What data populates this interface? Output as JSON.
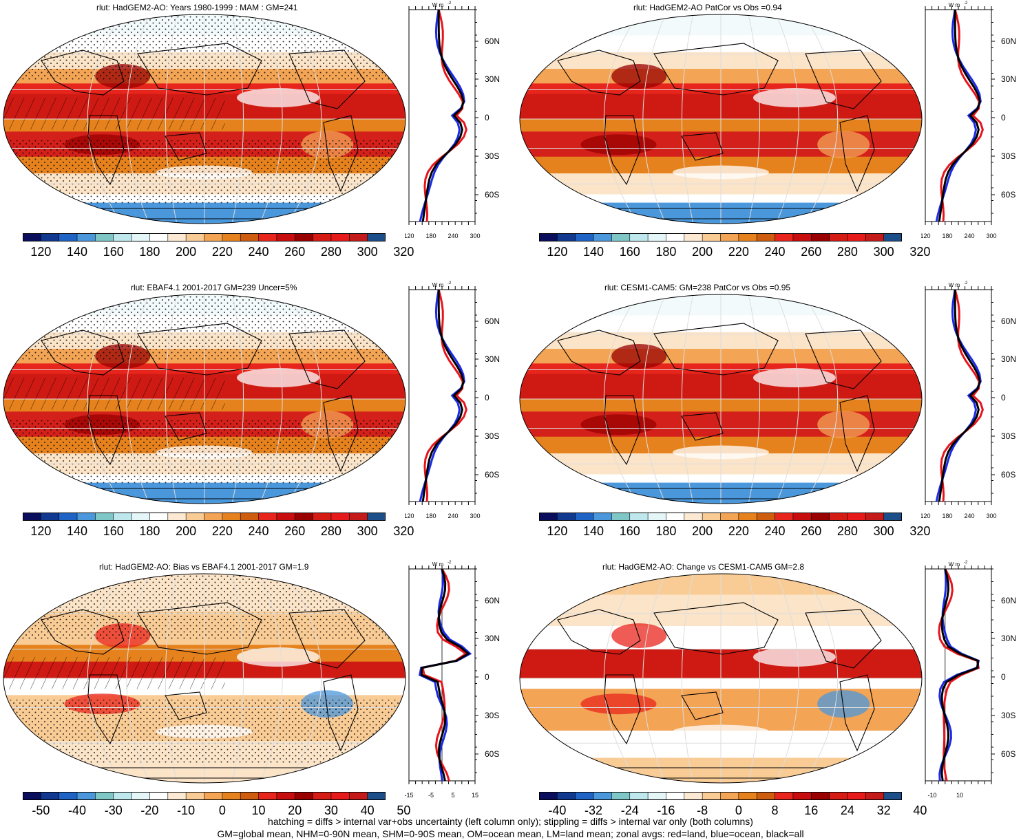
{
  "panels": [
    {
      "id": "p1",
      "title": "rlut: HadGEM2-AO: Years 1980-1999 : MAM : GM=241",
      "kind": "absolute",
      "hatch": true,
      "stipple": true,
      "profile_xticks": [
        "120",
        "180",
        "240",
        "300"
      ],
      "colorbar_labels": [
        "120",
        "140",
        "160",
        "180",
        "200",
        "220",
        "240",
        "260",
        "280",
        "300",
        "320"
      ]
    },
    {
      "id": "p2",
      "title": "rlut: HadGEM2-AO PatCor vs Obs =0.94",
      "kind": "absolute",
      "hatch": false,
      "stipple": false,
      "profile_xticks": [
        "120",
        "180",
        "240",
        "300"
      ],
      "colorbar_labels": [
        "120",
        "140",
        "160",
        "180",
        "200",
        "220",
        "240",
        "260",
        "280",
        "300",
        "320"
      ]
    },
    {
      "id": "p3",
      "title": "rlut: EBAF4.1 2001-2017 GM=239 Uncer=5%",
      "kind": "absolute",
      "hatch": true,
      "stipple": true,
      "profile_xticks": [
        "120",
        "180",
        "240",
        "300"
      ],
      "colorbar_labels": [
        "120",
        "140",
        "160",
        "180",
        "200",
        "220",
        "240",
        "260",
        "280",
        "300",
        "320"
      ]
    },
    {
      "id": "p4",
      "title": "rlut: CESM1-CAM5: GM=238 PatCor vs Obs =0.95",
      "kind": "absolute",
      "hatch": false,
      "stipple": false,
      "profile_xticks": [
        "120",
        "180",
        "240",
        "300"
      ],
      "colorbar_labels": [
        "120",
        "140",
        "160",
        "180",
        "200",
        "220",
        "240",
        "260",
        "280",
        "300",
        "320"
      ]
    },
    {
      "id": "p5",
      "title": "rlut: HadGEM2-AO: Bias vs EBAF4.1 2001-2017 GM=1.9",
      "kind": "bias",
      "hatch": true,
      "stipple": true,
      "profile_xticks": [
        "-15",
        "-5",
        "5",
        "15"
      ],
      "colorbar_labels": [
        "-50",
        "-40",
        "-30",
        "-20",
        "-10",
        "0",
        "10",
        "20",
        "30",
        "40",
        "50"
      ]
    },
    {
      "id": "p6",
      "title": "rlut: HadGEM2-AO: Change vs CESM1-CAM5 GM=2.8",
      "kind": "change",
      "hatch": false,
      "stipple": false,
      "profile_xticks": [
        "-10",
        "10"
      ],
      "colorbar_labels": [
        "-40",
        "-32",
        "-24",
        "-16",
        "-8",
        "0",
        "8",
        "16",
        "24",
        "32",
        "40"
      ]
    }
  ],
  "profile": {
    "unit_label": "W m",
    "unit_exp": "-2",
    "lat_labels": [
      "60N",
      "30N",
      "0",
      "30S",
      "60S"
    ],
    "line_colors": {
      "land": "#e8141c",
      "ocean": "#1a2ae8",
      "all": "#000000"
    }
  },
  "colorbar_colors": [
    "#0a0e5c",
    "#10398f",
    "#1f63c4",
    "#4b97dc",
    "#7fc6c6",
    "#bfe8ee",
    "#e4f6f8",
    "#ffffff",
    "#fbe9d3",
    "#f9cc96",
    "#f3a455",
    "#e6821e",
    "#cf5d10",
    "#e8251c",
    "#c70d0d",
    "#990000",
    "#d41b14",
    "#e61a1a",
    "#c41a1a",
    "#1c4f8a"
  ],
  "footnotes": [
    "hatching = diffs > internal var+obs uncertainty (left column only); stippling = diffs > internal var only (both columns)",
    "GM=global mean, NHM=0-90N mean, SHM=0-90S mean, OM=ocean mean, LM=land mean; zonal avgs: red=land, blue=ocean, black=all"
  ]
}
